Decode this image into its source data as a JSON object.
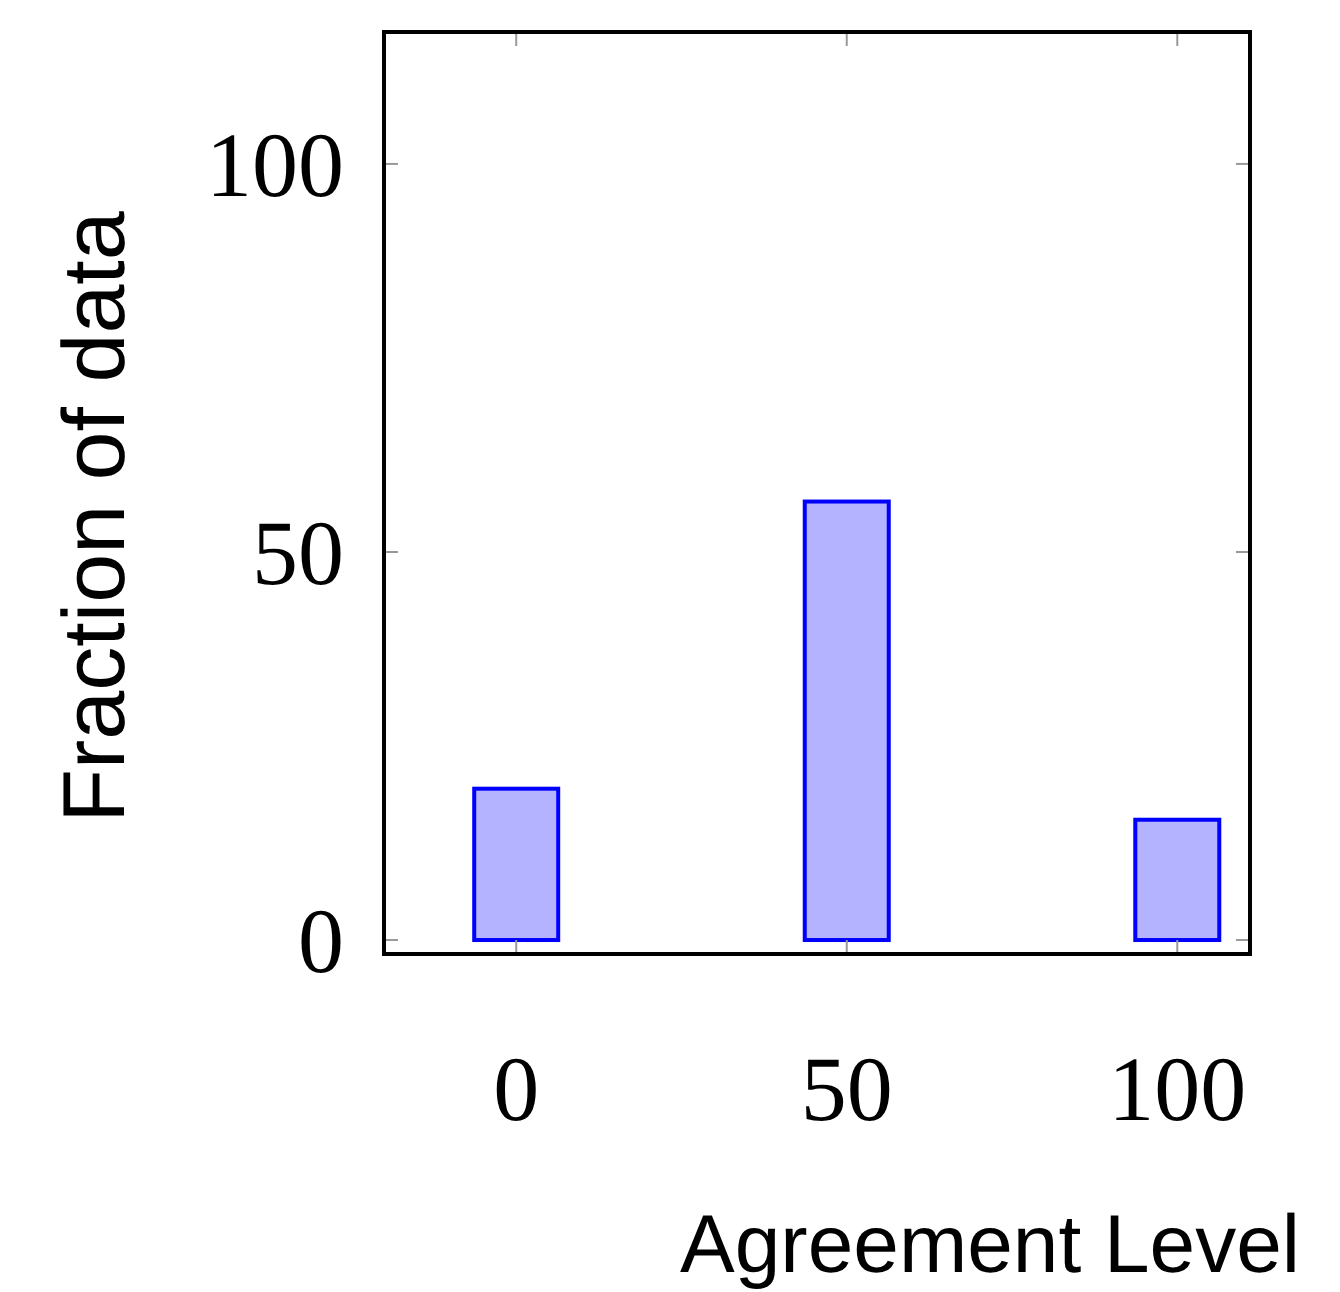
{
  "chart_data": {
    "type": "bar",
    "x": [
      0,
      50,
      100
    ],
    "values": [
      19.5,
      56.5,
      15.5
    ],
    "color": "#b3b3ff",
    "xlabel": "Agreement Level",
    "ylabel": "Fraction of data",
    "xlim": [
      -20,
      111
    ],
    "ylim": [
      -1.8,
      117
    ],
    "xticks": [
      0,
      50,
      100
    ],
    "yticks": [
      0,
      50,
      100
    ],
    "grid": false
  }
}
